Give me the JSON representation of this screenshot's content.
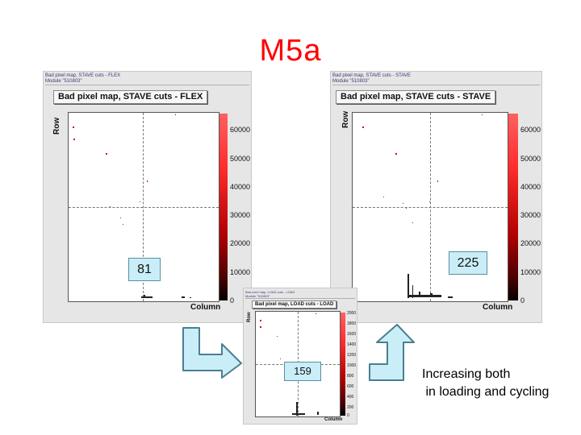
{
  "slide_title": "M5a",
  "panels": {
    "flex": {
      "header_line1": "Bad pixel map, STAVE cuts - FLEX",
      "header_line2": "Module \"510803\"",
      "title": "Bad pixel map, STAVE cuts - FLEX",
      "y_label": "Row",
      "x_label": "Column",
      "colorbar_ticks": [
        "60000",
        "50000",
        "40000",
        "30000",
        "20000",
        "10000",
        "0"
      ],
      "bad_pixel_count": "81"
    },
    "load": {
      "header_line1": "Bad pixel map, LOAD cuts - LOAD",
      "header_line2": "Module \"510803\"",
      "title": "Bad pixel map, LOAD cuts - LOAD",
      "y_label": "Row",
      "x_label": "Column",
      "colorbar_ticks": [
        "2000",
        "1800",
        "1600",
        "1400",
        "1200",
        "1000",
        "800",
        "600",
        "400",
        "200",
        "0"
      ],
      "bad_pixel_count": "159"
    },
    "stave": {
      "header_line1": "Bad pixel map, STAVE cuts - STAVE",
      "header_line2": "Module \"510803\"",
      "title": "Bad pixel map, STAVE cuts - STAVE",
      "y_label": "Row",
      "x_label": "Column",
      "colorbar_ticks": [
        "60000",
        "50000",
        "40000",
        "30000",
        "20000",
        "10000",
        "0"
      ],
      "bad_pixel_count": "225"
    }
  },
  "note": "Increasing both\n in loading and cycling",
  "colors": {
    "title": "#ff0000",
    "count_box_fill": "#c9eef8",
    "arrow_fill": "#c9eef8",
    "arrow_stroke": "#4a7f90",
    "bad_pixel": "#d01010"
  }
}
